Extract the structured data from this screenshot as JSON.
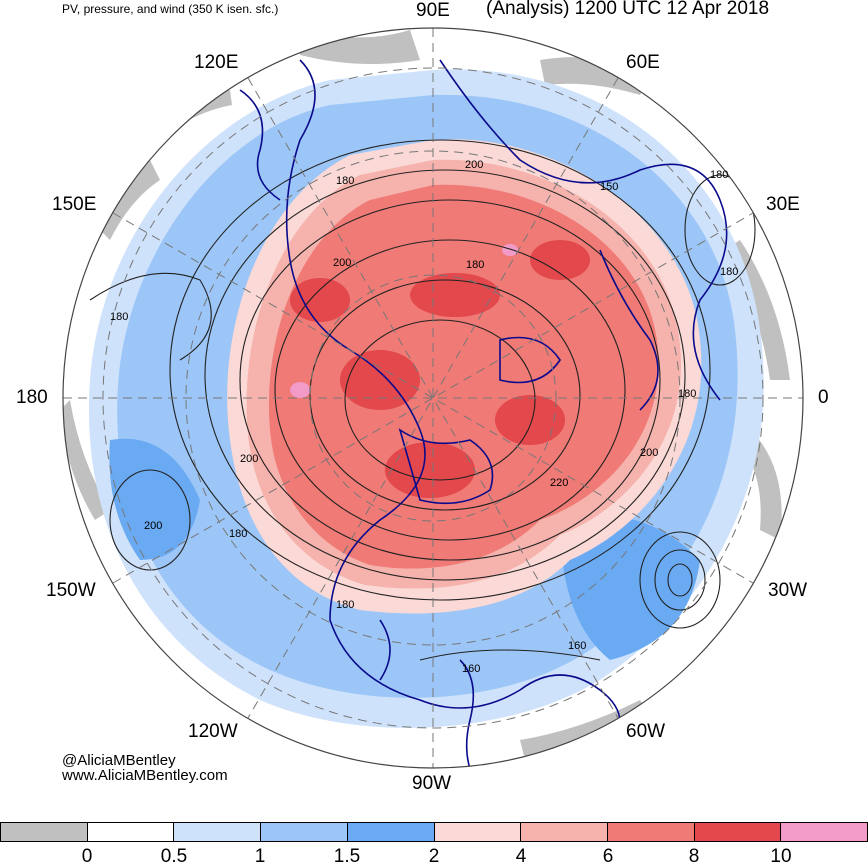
{
  "header": {
    "product": "PV, pressure, and wind (350 K isen. sfc.)",
    "valid": "(Analysis) 1200 UTC 12 Apr 2018"
  },
  "map": {
    "projection": "north-polar-stereographic",
    "longitude_labels": {
      "top": "90E",
      "upper_left": "120E",
      "upper_right": "60E",
      "left_upper": "150E",
      "right_upper": "30E",
      "left": "180",
      "right": "0",
      "left_lower": "150W",
      "right_lower": "30W",
      "lower_left": "120W",
      "lower_right": "60W",
      "bottom": "90W"
    },
    "pressure_contour_labels": [
      "200",
      "180",
      "180",
      "150",
      "180",
      "200",
      "180",
      "180",
      "200",
      "200",
      "220",
      "180",
      "200",
      "180",
      "160",
      "160",
      "180"
    ],
    "colors": {
      "coastline": "#0a0a8c",
      "contour": "#222222",
      "grid": "#777777"
    }
  },
  "credit": {
    "handle": "@AliciaMBentley",
    "site": "www.AliciaMBentley.com"
  },
  "colorbar": {
    "colors": [
      "#c0c0c0",
      "#ffffff",
      "#cfe2fb",
      "#9cc6f7",
      "#6aaaf3",
      "#fad9d6",
      "#f6b3ad",
      "#f07a75",
      "#e2484c",
      "#f29bc8"
    ],
    "ticks": [
      "0",
      "0.5",
      "1",
      "1.5",
      "2",
      "4",
      "6",
      "8",
      "10"
    ]
  }
}
